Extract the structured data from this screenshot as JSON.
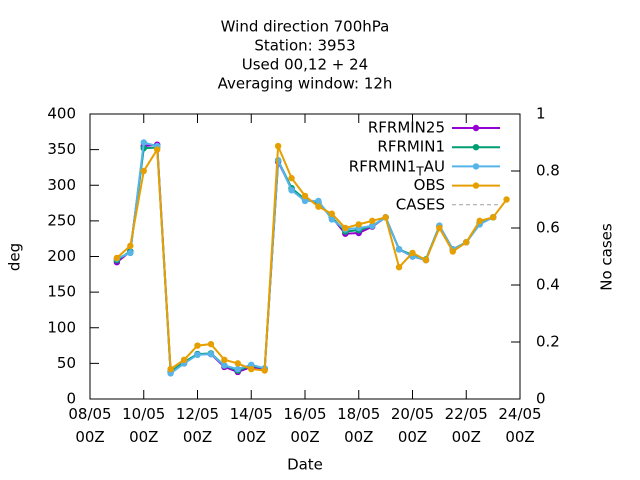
{
  "chart_data": {
    "type": "line",
    "title": [
      "Wind direction 700hPa",
      "Station:     3953",
      "Used  00,12  + 24",
      "Averaging window: 12h"
    ],
    "xlabel": "Date",
    "ylabel": "deg",
    "y2label": "No cases",
    "x": [
      "09/05 00Z",
      "09/05 12Z",
      "10/05 00Z",
      "10/05 12Z",
      "11/05 00Z",
      "11/05 12Z",
      "12/05 00Z",
      "12/05 12Z",
      "13/05 00Z",
      "13/05 12Z",
      "14/05 00Z",
      "14/05 12Z",
      "15/05 00Z",
      "15/05 12Z",
      "16/05 00Z",
      "16/05 12Z",
      "17/05 00Z",
      "17/05 12Z",
      "18/05 00Z",
      "18/05 12Z",
      "19/05 00Z",
      "19/05 12Z",
      "20/05 00Z",
      "20/05 12Z",
      "21/05 00Z",
      "21/05 12Z",
      "22/05 00Z",
      "22/05 12Z",
      "23/05 00Z",
      "23/05 12Z"
    ],
    "xlim": [
      "08/05 00Z",
      "24/05 00Z"
    ],
    "xticks": [
      "08/05 00Z",
      "10/05 00Z",
      "12/05 00Z",
      "14/05 00Z",
      "16/05 00Z",
      "18/05 00Z",
      "20/05 00Z",
      "22/05 00Z",
      "24/05 00Z"
    ],
    "ylim": [
      0,
      400
    ],
    "yticks": [
      0,
      50,
      100,
      150,
      200,
      250,
      300,
      350,
      400
    ],
    "y2lim": [
      0,
      1
    ],
    "y2ticks": [
      0,
      0.2,
      0.4,
      0.6,
      0.8,
      1
    ],
    "legend": "top-right",
    "series": [
      {
        "name": "RFRMIN25",
        "color": "#9400d3",
        "values": [
          192,
          207,
          355,
          357,
          38,
          50,
          63,
          63,
          45,
          38,
          45,
          42,
          333,
          295,
          280,
          275,
          255,
          232,
          233,
          242,
          255,
          210,
          200,
          195,
          243,
          210,
          220,
          247,
          255,
          null
        ]
      },
      {
        "name": "RFRMIN1",
        "color": "#009e73",
        "values": [
          195,
          207,
          352,
          353,
          38,
          52,
          63,
          64,
          47,
          40,
          47,
          43,
          335,
          296,
          280,
          276,
          255,
          235,
          237,
          243,
          255,
          210,
          202,
          196,
          243,
          210,
          220,
          247,
          255,
          null
        ]
      },
      {
        "name": "RFRMIN1_TAU",
        "color": "#56b4e9",
        "values": [
          197,
          205,
          360,
          355,
          36,
          50,
          62,
          63,
          47,
          42,
          48,
          43,
          335,
          293,
          278,
          278,
          252,
          238,
          240,
          243,
          255,
          210,
          200,
          195,
          243,
          210,
          220,
          245,
          255,
          null
        ]
      },
      {
        "name": "OBS",
        "color": "#e69f00",
        "values": [
          198,
          215,
          320,
          350,
          42,
          55,
          75,
          77,
          55,
          50,
          42,
          40,
          355,
          310,
          285,
          270,
          260,
          240,
          245,
          250,
          255,
          185,
          205,
          195,
          240,
          207,
          220,
          250,
          255,
          280
        ]
      },
      {
        "name": "CASES",
        "color": "#a0a0a0",
        "dashed": true,
        "axis": "y2",
        "values": [
          null,
          null,
          null,
          null,
          null,
          null,
          null,
          null,
          null,
          null,
          null,
          null,
          null,
          null,
          null,
          null,
          null,
          null,
          null,
          null,
          null,
          null,
          null,
          null,
          null,
          null,
          null,
          null,
          null,
          null
        ]
      }
    ]
  }
}
